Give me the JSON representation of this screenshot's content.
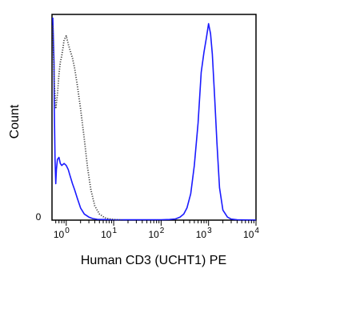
{
  "chart_data": {
    "type": "line",
    "title": "",
    "xlabel": "Human CD3 (UCHT1) PE",
    "ylabel": "Count",
    "x_scale": "log",
    "xlim": [
      0.5,
      10000
    ],
    "ylim": [
      0,
      100
    ],
    "grid": false,
    "legend": "none",
    "y_zero_label": "0",
    "x_ticks": [
      {
        "value": 1,
        "base": "10",
        "exp": "0"
      },
      {
        "value": 10,
        "base": "10",
        "exp": "1"
      },
      {
        "value": 100,
        "base": "10",
        "exp": "2"
      },
      {
        "value": 1000,
        "base": "10",
        "exp": "3"
      },
      {
        "value": 10000,
        "base": "10",
        "exp": "4"
      }
    ],
    "series": [
      {
        "color": "#1a1aff",
        "style": "solid",
        "x": [
          0.52,
          0.55,
          0.56,
          0.58,
          0.6,
          0.62,
          0.65,
          0.7,
          0.75,
          0.8,
          0.9,
          1.0,
          1.1,
          1.2,
          1.35,
          1.5,
          1.7,
          2.0,
          2.4,
          3.0,
          3.6,
          4.5,
          6,
          10,
          30,
          100,
          150,
          200,
          250,
          300,
          350,
          420,
          500,
          600,
          700,
          800,
          900,
          1000,
          1100,
          1200,
          1350,
          1500,
          1700,
          2000,
          2500,
          3000,
          4000,
          10000
        ],
        "y": [
          100,
          78,
          55,
          30,
          18,
          25,
          30,
          31,
          28,
          27,
          28,
          27,
          25,
          22,
          18,
          15,
          11,
          6,
          3,
          1.5,
          0.8,
          0.4,
          0.3,
          0.2,
          0.2,
          0.2,
          0.3,
          0.6,
          1.5,
          3,
          6,
          13,
          27,
          48,
          73,
          83,
          90,
          97,
          92,
          82,
          60,
          38,
          16,
          5,
          1.5,
          0.5,
          0.2,
          0
        ]
      },
      {
        "color": "#444444",
        "style": "dotted",
        "x": [
          0.52,
          0.56,
          0.6,
          0.65,
          0.7,
          0.75,
          0.8,
          0.85,
          0.9,
          1.0,
          1.1,
          1.2,
          1.35,
          1.5,
          1.7,
          2.0,
          2.4,
          2.8,
          3.3,
          4.0,
          5,
          6.5,
          8,
          10,
          15
        ],
        "y": [
          96,
          67,
          55,
          62,
          72,
          78,
          81,
          85,
          89,
          91,
          87,
          84,
          80,
          75,
          67,
          55,
          40,
          26,
          15,
          7,
          3,
          1.2,
          0.6,
          0.3,
          0
        ]
      }
    ]
  }
}
